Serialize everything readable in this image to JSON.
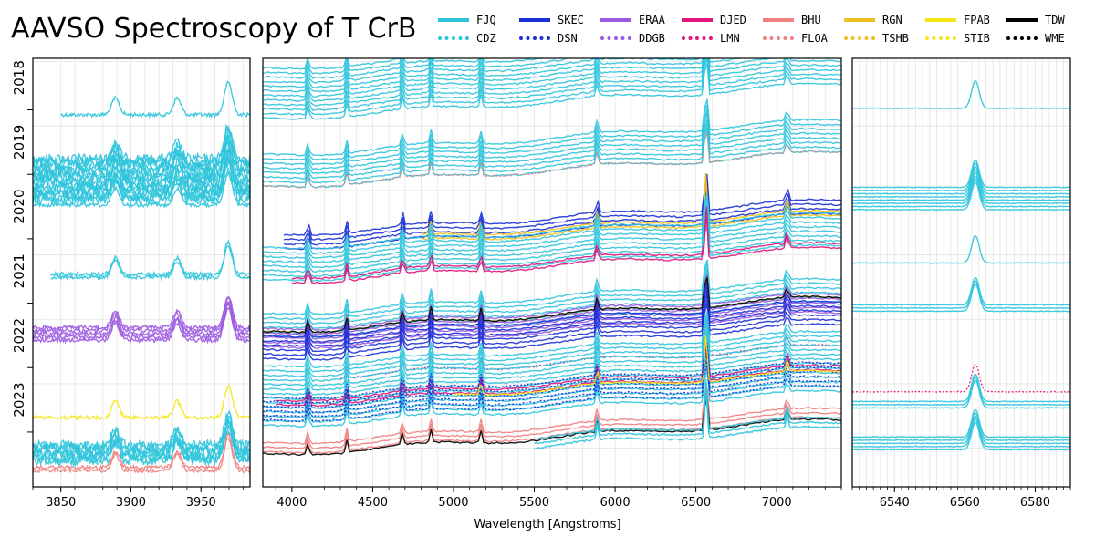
{
  "chart_data": {
    "type": "line",
    "title": "AAVSO Spectroscopy of T CrB",
    "xlabel": "Wavelength [Angstroms]",
    "ylabel": "",
    "grid": true,
    "legend_position": "top-right",
    "year_labels": [
      "2018",
      "2019",
      "2020",
      "2021",
      "2022",
      "2023"
    ],
    "legend": [
      {
        "code": "FJQ",
        "color": "#2ec4dc",
        "style": "solid"
      },
      {
        "code": "CDZ",
        "color": "#2ec4dc",
        "style": "dotted"
      },
      {
        "code": "SKEC",
        "color": "#1a2fd6",
        "style": "solid"
      },
      {
        "code": "DSN",
        "color": "#1a2fd6",
        "style": "dotted"
      },
      {
        "code": "ERAA",
        "color": "#9b59e0",
        "style": "solid"
      },
      {
        "code": "DDGB",
        "color": "#9b59e0",
        "style": "dotted"
      },
      {
        "code": "DJED",
        "color": "#e0157d",
        "style": "solid"
      },
      {
        "code": "LMN",
        "color": "#e0157d",
        "style": "dotted"
      },
      {
        "code": "BHU",
        "color": "#f08080",
        "style": "solid"
      },
      {
        "code": "FLOA",
        "color": "#f08080",
        "style": "dotted"
      },
      {
        "code": "RGN",
        "color": "#f0c020",
        "style": "solid"
      },
      {
        "code": "TSHB",
        "color": "#f0c020",
        "style": "dotted"
      },
      {
        "code": "FPAB",
        "color": "#f5e614",
        "style": "solid"
      },
      {
        "code": "STIB",
        "color": "#f5e614",
        "style": "dotted"
      },
      {
        "code": "TDW",
        "color": "#000000",
        "style": "solid"
      },
      {
        "code": "WME",
        "color": "#000000",
        "style": "dotted"
      }
    ],
    "panels": [
      {
        "name": "ca-ii-region",
        "xlim": [
          3830,
          3985
        ],
        "ticks": [
          3850,
          3900,
          3950
        ],
        "tick_labels": [
          "3850",
          "3900",
          "3950"
        ],
        "minor_step": 10,
        "lines": [
          3889,
          3933,
          3969,
          3970
        ],
        "series": [
          {
            "year": 2018.6,
            "station": "FJQ",
            "x_start": 3850,
            "n": 1
          },
          {
            "year": 2019.6,
            "station": "FJQ",
            "x_start": 3830,
            "n": 14
          },
          {
            "year": 2020.0,
            "station": "FJQ",
            "x_start": 3830,
            "n": 1
          },
          {
            "year": 2021.1,
            "station": "FJQ",
            "x_start": 3843,
            "n": 2
          },
          {
            "year": 2022.0,
            "station": "ERAA",
            "x_start": 3830,
            "n": 5
          },
          {
            "year": 2023.3,
            "station": "FPAB",
            "x_start": 3830,
            "n": 1
          },
          {
            "year": 2023.85,
            "station": "FJQ",
            "x_start": 3830,
            "n": 6
          },
          {
            "year": 2024.1,
            "station": "BHU",
            "x_start": 3830,
            "n": 2
          }
        ]
      },
      {
        "name": "full-spectrum",
        "xlim": [
          3820,
          7400
        ],
        "ticks": [
          4000,
          4500,
          5000,
          5500,
          6000,
          6500,
          7000
        ],
        "tick_labels": [
          "4000",
          "4500",
          "5000",
          "5500",
          "6000",
          "6500",
          "7000"
        ],
        "minor_step": 100,
        "lines": [
          4101,
          4340,
          4686,
          4861,
          5169,
          5890,
          6563,
          7065
        ],
        "series": [
          {
            "year": 2018.3,
            "station": "FJQ",
            "x_start": 3820,
            "n": 12
          },
          {
            "year": 2019.5,
            "station": "FJQ",
            "x_start": 3820,
            "n": 8
          },
          {
            "year": 2019.75,
            "station": "FLOA",
            "x_start": 3820,
            "n": 1
          },
          {
            "year": 2020.6,
            "station": "SKEC",
            "x_start": 3950,
            "n": 4
          },
          {
            "year": 2020.7,
            "station": "RGN",
            "x_start": 4800,
            "n": 2
          },
          {
            "year": 2020.95,
            "station": "FJQ",
            "x_start": 3820,
            "n": 8
          },
          {
            "year": 2021.2,
            "station": "DJED",
            "x_start": 4000,
            "n": 2
          },
          {
            "year": 2021.9,
            "station": "FJQ",
            "x_start": 3820,
            "n": 6
          },
          {
            "year": 2022.1,
            "station": "ERAA",
            "x_start": 3820,
            "n": 5
          },
          {
            "year": 2022.25,
            "station": "SKEC",
            "x_start": 3820,
            "n": 6
          },
          {
            "year": 2022.0,
            "station": "TSHB",
            "x_start": 3820,
            "n": 1
          },
          {
            "year": 2022.0,
            "station": "TDW",
            "x_start": 3820,
            "n": 1
          },
          {
            "year": 2022.75,
            "station": "LMN",
            "x_start": 4300,
            "n": 1
          },
          {
            "year": 2023.0,
            "station": "FJQ",
            "x_start": 3820,
            "n": 14
          },
          {
            "year": 2023.1,
            "station": "DJED",
            "x_start": 3900,
            "n": 2
          },
          {
            "year": 2023.2,
            "station": "DSN",
            "x_start": 3820,
            "n": 6
          },
          {
            "year": 2023.15,
            "station": "FPAB",
            "x_start": 5000,
            "n": 1
          },
          {
            "year": 2023.8,
            "station": "BHU",
            "x_start": 3820,
            "n": 3
          },
          {
            "year": 2023.9,
            "station": "TDW",
            "x_start": 3820,
            "n": 1
          },
          {
            "year": 2023.95,
            "station": "FJQ",
            "x_start": 5500,
            "n": 3
          }
        ]
      },
      {
        "name": "h-alpha-region",
        "xlim": [
          6528,
          6590
        ],
        "ticks": [
          6540,
          6560,
          6580
        ],
        "tick_labels": [
          "6540",
          "6560",
          "6580"
        ],
        "minor_step": 2,
        "lines": [
          6563
        ],
        "series": [
          {
            "year": 2018.5,
            "station": "FJQ",
            "x_start": 6528,
            "n": 1
          },
          {
            "year": 2019.9,
            "station": "FJQ",
            "x_start": 6528,
            "n": 8
          },
          {
            "year": 2020.9,
            "station": "FJQ",
            "x_start": 6528,
            "n": 1
          },
          {
            "year": 2021.6,
            "station": "FJQ",
            "x_start": 6528,
            "n": 3
          },
          {
            "year": 2022.9,
            "station": "LMN",
            "x_start": 6528,
            "n": 1
          },
          {
            "year": 2023.1,
            "station": "FJQ",
            "x_start": 6528,
            "n": 3
          },
          {
            "year": 2023.7,
            "station": "FJQ",
            "x_start": 6528,
            "n": 5
          }
        ]
      }
    ]
  }
}
